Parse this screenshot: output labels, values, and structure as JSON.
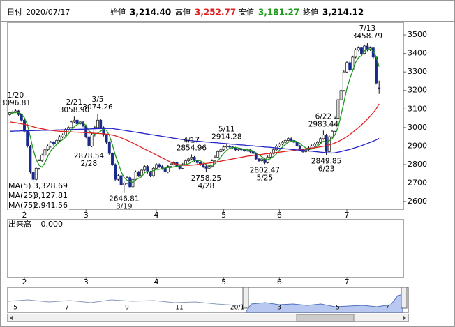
{
  "header": {
    "date_label": "日付",
    "date": "2020/07/17",
    "open_label": "始値",
    "open": "3,214.40",
    "high_label": "高値",
    "high": "3,252.77",
    "low_label": "安値",
    "low": "3,181.27",
    "close_label": "終値",
    "close": "3,214.12"
  },
  "chart_data": {
    "type": "candlestick",
    "ylim": [
      2559,
      3568
    ],
    "yticks": [
      2600,
      2700,
      2800,
      2900,
      3000,
      3100,
      3200,
      3300,
      3400,
      3500
    ],
    "up_color": "#ffffff",
    "down_color": "#1a2a8c",
    "months": [
      "2",
      "3",
      "4",
      "5",
      "6",
      "7"
    ],
    "ohlc": [
      [
        3070,
        3086,
        3064,
        3080
      ],
      [
        3080,
        3092,
        3074,
        3085
      ],
      [
        3085,
        3096.81,
        3078,
        3090
      ],
      [
        3090,
        3094,
        3062,
        3070
      ],
      [
        3070,
        3074,
        3032,
        3040
      ],
      [
        3040,
        3046,
        2972,
        2980
      ],
      [
        2980,
        2986,
        2892,
        2900
      ],
      [
        2900,
        2906,
        2752,
        2760
      ],
      [
        2760,
        2770,
        2705,
        2720
      ],
      [
        2720,
        2788,
        2714,
        2780
      ],
      [
        2780,
        2828,
        2772,
        2820
      ],
      [
        2820,
        2858,
        2812,
        2850
      ],
      [
        2850,
        2888,
        2842,
        2880
      ],
      [
        2880,
        2908,
        2872,
        2900
      ],
      [
        2900,
        2928,
        2892,
        2920
      ],
      [
        2920,
        2926,
        2902,
        2910
      ],
      [
        2910,
        2938,
        2904,
        2930
      ],
      [
        2930,
        2958,
        2922,
        2950
      ],
      [
        2950,
        2968,
        2942,
        2960
      ],
      [
        2960,
        2998,
        2952,
        2990
      ],
      [
        2990,
        3008,
        2982,
        3000
      ],
      [
        3000,
        3038,
        2994,
        3030
      ],
      [
        3030,
        3058.9,
        3024,
        3040
      ],
      [
        3040,
        3046,
        3012,
        3020
      ],
      [
        3020,
        3038,
        3014,
        3030
      ],
      [
        3030,
        3036,
        3002,
        3010
      ],
      [
        3010,
        3016,
        2942,
        2950
      ],
      [
        2950,
        2956,
        2878.54,
        2900
      ],
      [
        2900,
        2968,
        2894,
        2960
      ],
      [
        2960,
        3008,
        2952,
        3000
      ],
      [
        3000,
        3074.26,
        2994,
        3040
      ],
      [
        3040,
        3046,
        2992,
        3000
      ],
      [
        3000,
        3006,
        2952,
        2960
      ],
      [
        2960,
        2966,
        2912,
        2920
      ],
      [
        2920,
        2926,
        2852,
        2860
      ],
      [
        2860,
        2866,
        2792,
        2800
      ],
      [
        2800,
        2806,
        2712,
        2720
      ],
      [
        2720,
        2748,
        2712,
        2740
      ],
      [
        2740,
        2746,
        2682,
        2690
      ],
      [
        2690,
        2708,
        2646.81,
        2700
      ],
      [
        2700,
        2738,
        2694,
        2730
      ],
      [
        2730,
        2736,
        2672,
        2680
      ],
      [
        2680,
        2728,
        2674,
        2720
      ],
      [
        2720,
        2768,
        2714,
        2760
      ],
      [
        2760,
        2766,
        2732,
        2740
      ],
      [
        2740,
        2778,
        2734,
        2770
      ],
      [
        2770,
        2798,
        2764,
        2790
      ],
      [
        2790,
        2796,
        2752,
        2760
      ],
      [
        2760,
        2766,
        2732,
        2740
      ],
      [
        2740,
        2788,
        2734,
        2780
      ],
      [
        2780,
        2808,
        2774,
        2800
      ],
      [
        2800,
        2806,
        2782,
        2790
      ],
      [
        2790,
        2796,
        2772,
        2780
      ],
      [
        2780,
        2786,
        2752,
        2760
      ],
      [
        2760,
        2798,
        2754,
        2790
      ],
      [
        2790,
        2808,
        2784,
        2800
      ],
      [
        2800,
        2818,
        2794,
        2810
      ],
      [
        2810,
        2816,
        2782,
        2790
      ],
      [
        2790,
        2796,
        2772,
        2780
      ],
      [
        2780,
        2808,
        2774,
        2800
      ],
      [
        2800,
        2828,
        2794,
        2820
      ],
      [
        2820,
        2838,
        2814,
        2830
      ],
      [
        2830,
        2854.96,
        2824,
        2840
      ],
      [
        2840,
        2846,
        2812,
        2820
      ],
      [
        2820,
        2826,
        2802,
        2810
      ],
      [
        2810,
        2816,
        2792,
        2800
      ],
      [
        2800,
        2806,
        2782,
        2790
      ],
      [
        2790,
        2796,
        2758.25,
        2780
      ],
      [
        2780,
        2798,
        2774,
        2790
      ],
      [
        2790,
        2828,
        2784,
        2820
      ],
      [
        2820,
        2848,
        2814,
        2840
      ],
      [
        2840,
        2878,
        2834,
        2870
      ],
      [
        2870,
        2888,
        2864,
        2880
      ],
      [
        2880,
        2903,
        2874,
        2895
      ],
      [
        2895,
        2914.28,
        2888,
        2900
      ],
      [
        2900,
        2906,
        2888,
        2895
      ],
      [
        2895,
        2900,
        2884,
        2890
      ],
      [
        2890,
        2896,
        2874,
        2880
      ],
      [
        2880,
        2892,
        2874,
        2885
      ],
      [
        2885,
        2890,
        2874,
        2880
      ],
      [
        2880,
        2886,
        2869,
        2875
      ],
      [
        2875,
        2887,
        2870,
        2880
      ],
      [
        2880,
        2886,
        2864,
        2870
      ],
      [
        2870,
        2876,
        2854,
        2860
      ],
      [
        2860,
        2866,
        2824,
        2830
      ],
      [
        2830,
        2836,
        2814,
        2820
      ],
      [
        2820,
        2838,
        2814,
        2830
      ],
      [
        2830,
        2836,
        2802.47,
        2810
      ],
      [
        2810,
        2848,
        2806,
        2840
      ],
      [
        2840,
        2868,
        2834,
        2860
      ],
      [
        2860,
        2888,
        2854,
        2880
      ],
      [
        2880,
        2908,
        2874,
        2900
      ],
      [
        2900,
        2918,
        2894,
        2910
      ],
      [
        2910,
        2928,
        2904,
        2920
      ],
      [
        2920,
        2938,
        2914,
        2930
      ],
      [
        2930,
        2948,
        2924,
        2940
      ],
      [
        2940,
        2946,
        2924,
        2930
      ],
      [
        2930,
        2936,
        2914,
        2920
      ],
      [
        2920,
        2926,
        2894,
        2900
      ],
      [
        2900,
        2906,
        2874,
        2880
      ],
      [
        2880,
        2886,
        2864,
        2870
      ],
      [
        2870,
        2888,
        2864,
        2880
      ],
      [
        2880,
        2898,
        2874,
        2890
      ],
      [
        2890,
        2908,
        2884,
        2900
      ],
      [
        2900,
        2918,
        2894,
        2910
      ],
      [
        2910,
        2928,
        2904,
        2920
      ],
      [
        2920,
        2948,
        2914,
        2940
      ],
      [
        2940,
        2983.44,
        2934,
        2960
      ],
      [
        2960,
        2966,
        2849.85,
        2870
      ],
      [
        2870,
        2958,
        2864,
        2950
      ],
      [
        2950,
        2988,
        2944,
        2980
      ],
      [
        2980,
        3058,
        2974,
        3050
      ],
      [
        3050,
        3158,
        3044,
        3150
      ],
      [
        3150,
        3208,
        3144,
        3200
      ],
      [
        3200,
        3308,
        3194,
        3300
      ],
      [
        3300,
        3358,
        3294,
        3350
      ],
      [
        3350,
        3356,
        3302,
        3310
      ],
      [
        3310,
        3388,
        3304,
        3380
      ],
      [
        3380,
        3428,
        3374,
        3420
      ],
      [
        3420,
        3438,
        3412,
        3430
      ],
      [
        3430,
        3436,
        3392,
        3400
      ],
      [
        3400,
        3448,
        3394,
        3440
      ],
      [
        3440,
        3458.79,
        3412,
        3420
      ],
      [
        3420,
        3438,
        3414,
        3430
      ],
      [
        3430,
        3436,
        3372,
        3380
      ],
      [
        3380,
        3386,
        3232,
        3240
      ],
      [
        3214.4,
        3252.77,
        3181.27,
        3214.12
      ]
    ],
    "series": [
      {
        "name": "MA(5)",
        "color": "#1e9a1e",
        "value_label": "3,328.69",
        "values": [
          3075,
          3078,
          3082,
          3081,
          3073,
          3053,
          3016,
          2950,
          2880,
          2828,
          2796,
          2786,
          2810,
          2846,
          2874,
          2892,
          2908,
          2922,
          2934,
          2948,
          2966,
          2986,
          3004,
          3016,
          3024,
          3026,
          3010,
          2982,
          2970,
          2964,
          2970,
          2980,
          2992,
          2984,
          2956,
          2908,
          2852,
          2808,
          2762,
          2730,
          2716,
          2708,
          2704,
          2718,
          2726,
          2734,
          2756,
          2764,
          2760,
          2768,
          2774,
          2774,
          2778,
          2782,
          2784,
          2784,
          2788,
          2790,
          2794,
          2796,
          2800,
          2804,
          2814,
          2822,
          2824,
          2820,
          2812,
          2800,
          2794,
          2796,
          2804,
          2820,
          2840,
          2861,
          2877,
          2888,
          2892,
          2892,
          2890,
          2886,
          2882,
          2880,
          2878,
          2873,
          2863,
          2852,
          2842,
          2830,
          2826,
          2832,
          2844,
          2858,
          2878,
          2894,
          2908,
          2920,
          2926,
          2928,
          2924,
          2914,
          2900,
          2890,
          2884,
          2884,
          2890,
          2900,
          2912,
          2926,
          2920,
          2928,
          2940,
          2962,
          3000,
          3066,
          3136,
          3210,
          3262,
          3308,
          3352,
          3378,
          3388,
          3414,
          3422,
          3424,
          3414,
          3382,
          3328.69
        ]
      },
      {
        "name": "MA(25)",
        "color": "#e02020",
        "value_label": "3,127.81",
        "values": [
          3030,
          3028,
          3026,
          3023,
          3020,
          3017,
          3013,
          3009,
          3004,
          3000,
          2996,
          2993,
          2990,
          2987,
          2985,
          2983,
          2981,
          2980,
          2979,
          2978,
          2977,
          2976,
          2975,
          2975,
          2974,
          2973,
          2972,
          2971,
          2970,
          2969,
          2968,
          2967,
          2966,
          2964,
          2962,
          2959,
          2955,
          2950,
          2944,
          2938,
          2931,
          2924,
          2916,
          2908,
          2900,
          2892,
          2884,
          2876,
          2868,
          2860,
          2852,
          2844,
          2836,
          2828,
          2820,
          2812,
          2806,
          2802,
          2799,
          2797,
          2796,
          2796,
          2797,
          2798,
          2800,
          2802,
          2804,
          2806,
          2808,
          2810,
          2812,
          2815,
          2818,
          2821,
          2824,
          2827,
          2830,
          2833,
          2836,
          2839,
          2842,
          2845,
          2847,
          2849,
          2851,
          2853,
          2855,
          2857,
          2859,
          2861,
          2863,
          2865,
          2867,
          2869,
          2871,
          2873,
          2875,
          2877,
          2879,
          2881,
          2883,
          2885,
          2887,
          2889,
          2891,
          2893,
          2896,
          2899,
          2902,
          2906,
          2911,
          2917,
          2924,
          2932,
          2941,
          2951,
          2962,
          2974,
          2987,
          3000,
          3014,
          3029,
          3045,
          3062,
          3080,
          3100,
          3127.81
        ]
      },
      {
        "name": "MA(75)",
        "color": "#2424c8",
        "value_label": "2,941.56",
        "values": [
          2980,
          2980,
          2981,
          2981,
          2982,
          2982,
          2982,
          2983,
          2983,
          2984,
          2984,
          2985,
          2985,
          2985,
          2986,
          2986,
          2987,
          2987,
          2988,
          2988,
          2989,
          2989,
          2990,
          2990,
          2991,
          2991,
          2992,
          2992,
          2993,
          2993,
          2994,
          2994,
          2995,
          2995,
          2995,
          2995,
          2992,
          2990,
          2987,
          2985,
          2982,
          2980,
          2977,
          2975,
          2972,
          2970,
          2967,
          2965,
          2962,
          2960,
          2957,
          2955,
          2952,
          2950,
          2947,
          2945,
          2942,
          2940,
          2937,
          2935,
          2932,
          2930,
          2929,
          2927,
          2926,
          2925,
          2923,
          2922,
          2921,
          2919,
          2918,
          2917,
          2915,
          2914,
          2913,
          2911,
          2910,
          2909,
          2907,
          2906,
          2905,
          2903,
          2902,
          2901,
          2899,
          2898,
          2897,
          2895,
          2894,
          2893,
          2891,
          2890,
          2888,
          2887,
          2885,
          2884,
          2882,
          2881,
          2879,
          2878,
          2876,
          2875,
          2873,
          2872,
          2870,
          2869,
          2867,
          2866,
          2864,
          2863,
          2862,
          2864,
          2867,
          2870,
          2874,
          2878,
          2882,
          2887,
          2892,
          2897,
          2902,
          2908,
          2914,
          2920,
          2926,
          2933,
          2941.56
        ]
      }
    ],
    "annotations": [
      {
        "date": "1/20",
        "price": "3096.81"
      },
      {
        "date": "2/21",
        "price": "3058.90"
      },
      {
        "date": "2/28",
        "price": "2878.54"
      },
      {
        "date": "3/5",
        "price": "3074.26"
      },
      {
        "date": "3/19",
        "price": "2646.81"
      },
      {
        "date": "4/17",
        "price": "2854.96"
      },
      {
        "date": "4/28",
        "price": "2758.25"
      },
      {
        "date": "5/11",
        "price": "2914.28"
      },
      {
        "date": "5/25",
        "price": "2802.47"
      },
      {
        "date": "6/22",
        "price": "2983.44"
      },
      {
        "date": "6/23",
        "price": "2849.85"
      },
      {
        "date": "7/13",
        "price": "3458.79"
      }
    ]
  },
  "volume_panel": {
    "label": "出来高",
    "value": "0.000"
  },
  "navigator_labels": [
    "5",
    "7",
    "9",
    "11",
    "20/1",
    "3",
    "5",
    "7"
  ]
}
